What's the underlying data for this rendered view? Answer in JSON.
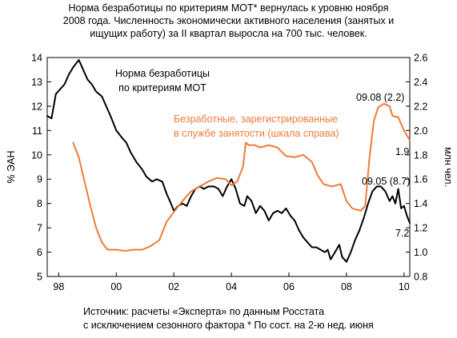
{
  "title_lines": [
    "Норма безработицы по критериям МОТ* вернулась к уровню ноября",
    "2008 года. Численность экономически активного населения (занятых и",
    "ищущих работу) за II квартал выросла на 700 тыс. человек."
  ],
  "source_lines": [
    "Источник: расчеты «Эксперта» по данным Росстата",
    "с исключением сезонного фактора * По сост. на 2-ю нед. июня"
  ],
  "chart_data": {
    "type": "line",
    "ylabel": "% ЭАН",
    "y2label": "млн чел.",
    "x_ticks": [
      "98",
      "00",
      "02",
      "04",
      "06",
      "08",
      "10"
    ],
    "x_tick_years": [
      1998,
      2000,
      2002,
      2004,
      2006,
      2008,
      2010
    ],
    "xlim": [
      1997.6,
      2010.2
    ],
    "ylim": [
      5,
      14
    ],
    "y_ticks": [
      "5",
      "6",
      "7",
      "8",
      "9",
      "10",
      "11",
      "12",
      "13",
      "14"
    ],
    "y2lim": [
      0.8,
      2.6
    ],
    "y2_ticks": [
      "0.8",
      "1.0",
      "1.2",
      "1.4",
      "1.6",
      "1.8",
      "2.0",
      "2.2",
      "2.4",
      "2.6"
    ],
    "grid": false,
    "series": [
      {
        "name": "Норма безработицы по критериям МОТ",
        "axis": "left",
        "color": "#000000",
        "points": [
          [
            1997.6,
            11.6
          ],
          [
            1997.75,
            11.5
          ],
          [
            1997.9,
            12.5
          ],
          [
            1998.05,
            12.7
          ],
          [
            1998.2,
            12.9
          ],
          [
            1998.35,
            13.3
          ],
          [
            1998.5,
            13.6
          ],
          [
            1998.7,
            13.9
          ],
          [
            1998.85,
            13.5
          ],
          [
            1999.0,
            13.1
          ],
          [
            1999.15,
            12.9
          ],
          [
            1999.3,
            12.6
          ],
          [
            1999.5,
            12.4
          ],
          [
            1999.65,
            12.0
          ],
          [
            1999.8,
            11.6
          ],
          [
            2000.0,
            11.0
          ],
          [
            2000.2,
            10.7
          ],
          [
            2000.35,
            10.5
          ],
          [
            2000.5,
            10.1
          ],
          [
            2000.7,
            9.7
          ],
          [
            2000.9,
            9.4
          ],
          [
            2001.05,
            9.1
          ],
          [
            2001.25,
            8.9
          ],
          [
            2001.4,
            9.0
          ],
          [
            2001.6,
            8.9
          ],
          [
            2001.75,
            8.4
          ],
          [
            2001.9,
            8.0
          ],
          [
            2002.0,
            7.7
          ],
          [
            2002.15,
            7.9
          ],
          [
            2002.3,
            8.0
          ],
          [
            2002.45,
            7.9
          ],
          [
            2002.6,
            8.3
          ],
          [
            2002.75,
            8.6
          ],
          [
            2002.9,
            8.7
          ],
          [
            2003.05,
            8.6
          ],
          [
            2003.2,
            8.7
          ],
          [
            2003.4,
            8.7
          ],
          [
            2003.55,
            8.6
          ],
          [
            2003.7,
            8.3
          ],
          [
            2003.85,
            8.7
          ],
          [
            2004.0,
            9.0
          ],
          [
            2004.15,
            8.6
          ],
          [
            2004.3,
            8.0
          ],
          [
            2004.45,
            7.9
          ],
          [
            2004.55,
            8.3
          ],
          [
            2004.7,
            8.1
          ],
          [
            2004.85,
            7.6
          ],
          [
            2005.0,
            7.9
          ],
          [
            2005.15,
            7.7
          ],
          [
            2005.3,
            7.3
          ],
          [
            2005.45,
            7.6
          ],
          [
            2005.6,
            7.7
          ],
          [
            2005.75,
            7.6
          ],
          [
            2005.9,
            7.8
          ],
          [
            2006.05,
            7.5
          ],
          [
            2006.2,
            7.3
          ],
          [
            2006.35,
            6.9
          ],
          [
            2006.5,
            6.6
          ],
          [
            2006.65,
            6.4
          ],
          [
            2006.8,
            6.2
          ],
          [
            2006.95,
            6.2
          ],
          [
            2007.1,
            6.1
          ],
          [
            2007.25,
            6.0
          ],
          [
            2007.35,
            6.1
          ],
          [
            2007.45,
            5.7
          ],
          [
            2007.6,
            6.0
          ],
          [
            2007.75,
            6.3
          ],
          [
            2007.85,
            5.8
          ],
          [
            2008.0,
            5.6
          ],
          [
            2008.15,
            6.0
          ],
          [
            2008.3,
            6.5
          ],
          [
            2008.45,
            6.9
          ],
          [
            2008.6,
            7.4
          ],
          [
            2008.75,
            8.0
          ],
          [
            2008.9,
            8.5
          ],
          [
            2009.05,
            8.7
          ],
          [
            2009.2,
            8.7
          ],
          [
            2009.35,
            8.5
          ],
          [
            2009.5,
            8.1
          ],
          [
            2009.6,
            8.3
          ],
          [
            2009.7,
            8.0
          ],
          [
            2009.8,
            8.6
          ],
          [
            2009.9,
            7.8
          ],
          [
            2010.0,
            7.9
          ],
          [
            2010.1,
            7.5
          ],
          [
            2010.2,
            7.2
          ]
        ]
      },
      {
        "name": "Безработные, зарегистрированные в службе занятости (шкала справа)",
        "axis": "right",
        "color": "#f07a3a",
        "points": [
          [
            1998.5,
            1.9
          ],
          [
            1998.7,
            1.78
          ],
          [
            1998.9,
            1.58
          ],
          [
            1999.1,
            1.38
          ],
          [
            1999.3,
            1.2
          ],
          [
            1999.5,
            1.08
          ],
          [
            1999.7,
            1.02
          ],
          [
            2000.0,
            1.02
          ],
          [
            2000.3,
            1.01
          ],
          [
            2000.6,
            1.02
          ],
          [
            2000.9,
            1.02
          ],
          [
            2001.2,
            1.05
          ],
          [
            2001.5,
            1.1
          ],
          [
            2001.75,
            1.25
          ],
          [
            2002.0,
            1.33
          ],
          [
            2002.3,
            1.42
          ],
          [
            2002.6,
            1.5
          ],
          [
            2002.9,
            1.54
          ],
          [
            2003.2,
            1.58
          ],
          [
            2003.5,
            1.61
          ],
          [
            2003.8,
            1.6
          ],
          [
            2004.0,
            1.55
          ],
          [
            2004.2,
            1.58
          ],
          [
            2004.4,
            1.7
          ],
          [
            2004.5,
            1.9
          ],
          [
            2004.6,
            1.88
          ],
          [
            2004.8,
            1.88
          ],
          [
            2005.0,
            1.86
          ],
          [
            2005.3,
            1.88
          ],
          [
            2005.6,
            1.86
          ],
          [
            2005.9,
            1.79
          ],
          [
            2006.2,
            1.78
          ],
          [
            2006.5,
            1.8
          ],
          [
            2006.8,
            1.74
          ],
          [
            2007.0,
            1.63
          ],
          [
            2007.2,
            1.56
          ],
          [
            2007.5,
            1.54
          ],
          [
            2007.8,
            1.56
          ],
          [
            2008.0,
            1.42
          ],
          [
            2008.2,
            1.36
          ],
          [
            2008.5,
            1.34
          ],
          [
            2008.65,
            1.38
          ],
          [
            2008.8,
            1.78
          ],
          [
            2008.95,
            2.08
          ],
          [
            2009.1,
            2.19
          ],
          [
            2009.3,
            2.22
          ],
          [
            2009.5,
            2.2
          ],
          [
            2009.6,
            2.12
          ],
          [
            2009.8,
            2.11
          ],
          [
            2010.0,
            2.0
          ],
          [
            2010.2,
            1.92
          ]
        ]
      }
    ],
    "labels": {
      "black_series": [
        "Норма безработицы",
        "по критериям МОТ"
      ],
      "orange_series": [
        "Безработные, зарегистрированные",
        "в службе занятости (шкала справа)"
      ]
    },
    "annotations": {
      "orange_peak": "09.08 (2.2)",
      "orange_last": "1.9",
      "black_peak": "09.05 (8.7)",
      "black_last": "7.2"
    }
  }
}
